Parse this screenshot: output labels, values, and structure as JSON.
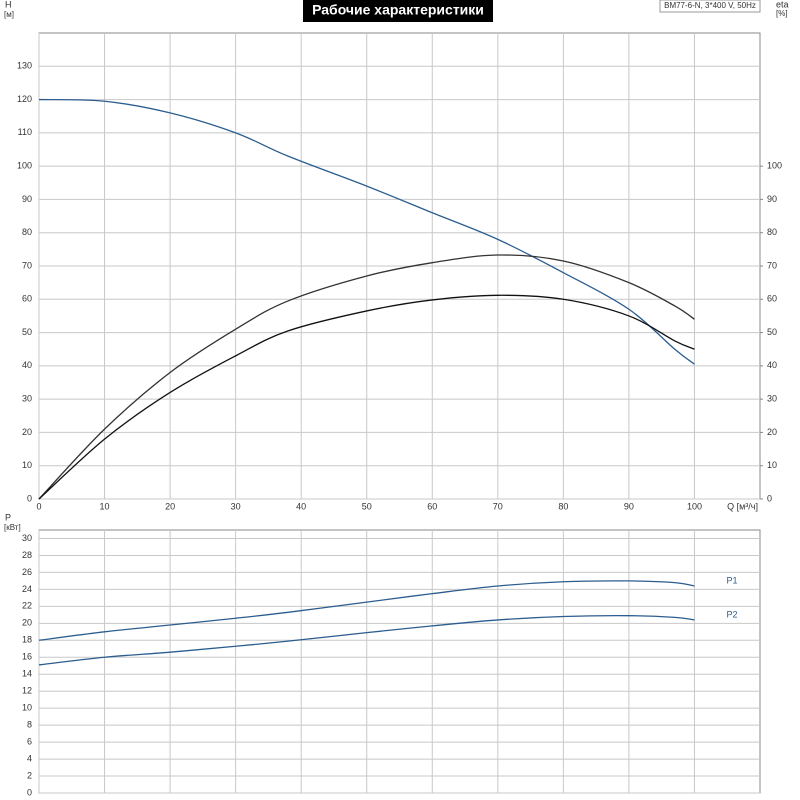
{
  "chart_data": [
    {
      "type": "line",
      "title": "Рабочие характеристики",
      "annotation": "BM77-6-N, 3*400 V, 50Hz",
      "xlabel": "Q [м³/ч]",
      "ylabel": "H",
      "ylabel_unit": "[м]",
      "y2label": "eta",
      "y2label_unit": "[%]",
      "x": [
        0,
        10,
        20,
        30,
        38,
        50,
        60,
        70,
        80,
        90,
        97,
        100
      ],
      "xlim": [
        0,
        110
      ],
      "xticks": [
        0,
        10,
        20,
        30,
        40,
        50,
        60,
        70,
        80,
        90,
        100
      ],
      "ylim": [
        0,
        140
      ],
      "yticks": [
        0,
        10,
        20,
        30,
        40,
        50,
        60,
        70,
        80,
        90,
        100,
        110,
        120,
        130
      ],
      "y2lim": [
        0,
        140
      ],
      "y2ticks": [
        0,
        10,
        20,
        30,
        40,
        50,
        60,
        70,
        80,
        90,
        100
      ],
      "grid": true,
      "series": [
        {
          "color": "#2b5d8f",
          "values": [
            120,
            119.5,
            116,
            110,
            103,
            94,
            86,
            78,
            68,
            57,
            45,
            40.5
          ]
        },
        {
          "color": "#333333",
          "axis": "y2",
          "values": [
            0,
            21,
            38,
            51,
            59.5,
            67,
            71,
            73.3,
            71.5,
            65,
            58,
            54
          ]
        },
        {
          "color": "#111111",
          "axis": "y2",
          "values": [
            0,
            18,
            32,
            43,
            50.5,
            56.5,
            59.8,
            61.2,
            60,
            55,
            47.5,
            45
          ]
        }
      ]
    },
    {
      "type": "line",
      "ylabel": "P",
      "ylabel_unit": "[кВт]",
      "x": [
        0,
        10,
        20,
        30,
        38,
        50,
        60,
        70,
        80,
        90,
        97,
        100
      ],
      "xlim": [
        0,
        110
      ],
      "xticks": [
        0,
        10,
        20,
        30,
        40,
        50,
        60,
        70,
        80,
        90,
        100
      ],
      "ylim": [
        0,
        31
      ],
      "yticks": [
        0,
        2,
        4,
        6,
        8,
        10,
        12,
        14,
        16,
        18,
        20,
        22,
        24,
        26,
        28,
        30
      ],
      "grid": true,
      "series": [
        {
          "name": "P1",
          "color": "#2b5d8f",
          "values": [
            18,
            19,
            19.8,
            20.6,
            21.3,
            22.5,
            23.5,
            24.4,
            24.9,
            25,
            24.8,
            24.4
          ]
        },
        {
          "name": "P2",
          "color": "#2b5d8f",
          "values": [
            15.1,
            16,
            16.6,
            17.3,
            17.9,
            18.9,
            19.7,
            20.4,
            20.8,
            20.9,
            20.7,
            20.4
          ]
        }
      ]
    }
  ]
}
